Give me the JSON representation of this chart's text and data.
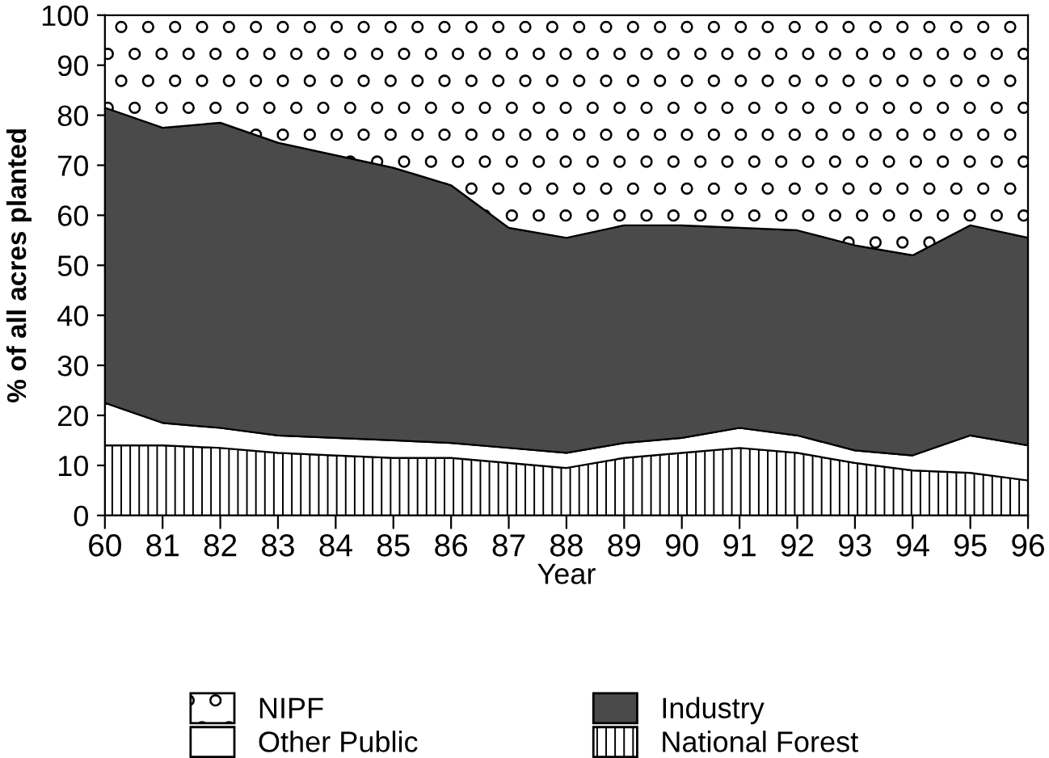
{
  "chart_data": {
    "type": "area",
    "stacked": true,
    "xlabel": "Year",
    "ylabel": "% of all acres planted",
    "categories": [
      "60",
      "81",
      "82",
      "83",
      "84",
      "85",
      "86",
      "87",
      "88",
      "89",
      "90",
      "91",
      "92",
      "93",
      "94",
      "95",
      "96"
    ],
    "series": [
      {
        "name": "National Forest",
        "color": "#000000",
        "values": [
          14,
          14,
          13.5,
          12.5,
          12,
          11.5,
          11.5,
          10.5,
          9.5,
          11.5,
          12.5,
          13.5,
          12.5,
          10.5,
          9,
          8.5,
          7
        ]
      },
      {
        "name": "Other Public",
        "color": "#ffffff",
        "values": [
          8.5,
          4.5,
          4,
          3.5,
          3.5,
          3.5,
          3,
          3,
          3,
          3,
          3,
          4,
          3.5,
          2.5,
          3,
          7.5,
          7
        ]
      },
      {
        "name": "Industry",
        "color": "#4a4a4a",
        "values": [
          59,
          59,
          61,
          58.5,
          56.5,
          54.5,
          51.5,
          44,
          43,
          43.5,
          42.5,
          40,
          41,
          41,
          40,
          42,
          41.5
        ]
      },
      {
        "name": "NIPF",
        "color": "#000000",
        "values": [
          18.5,
          22.5,
          21.5,
          25.5,
          28,
          30.5,
          34,
          42.5,
          44.5,
          42,
          42,
          42.5,
          43,
          46,
          48,
          42,
          44.5
        ]
      }
    ],
    "ylim": [
      0,
      100
    ],
    "yticks": [
      0,
      10,
      20,
      30,
      40,
      50,
      60,
      70,
      80,
      90,
      100
    ],
    "grid": false,
    "legend": "bottom"
  }
}
